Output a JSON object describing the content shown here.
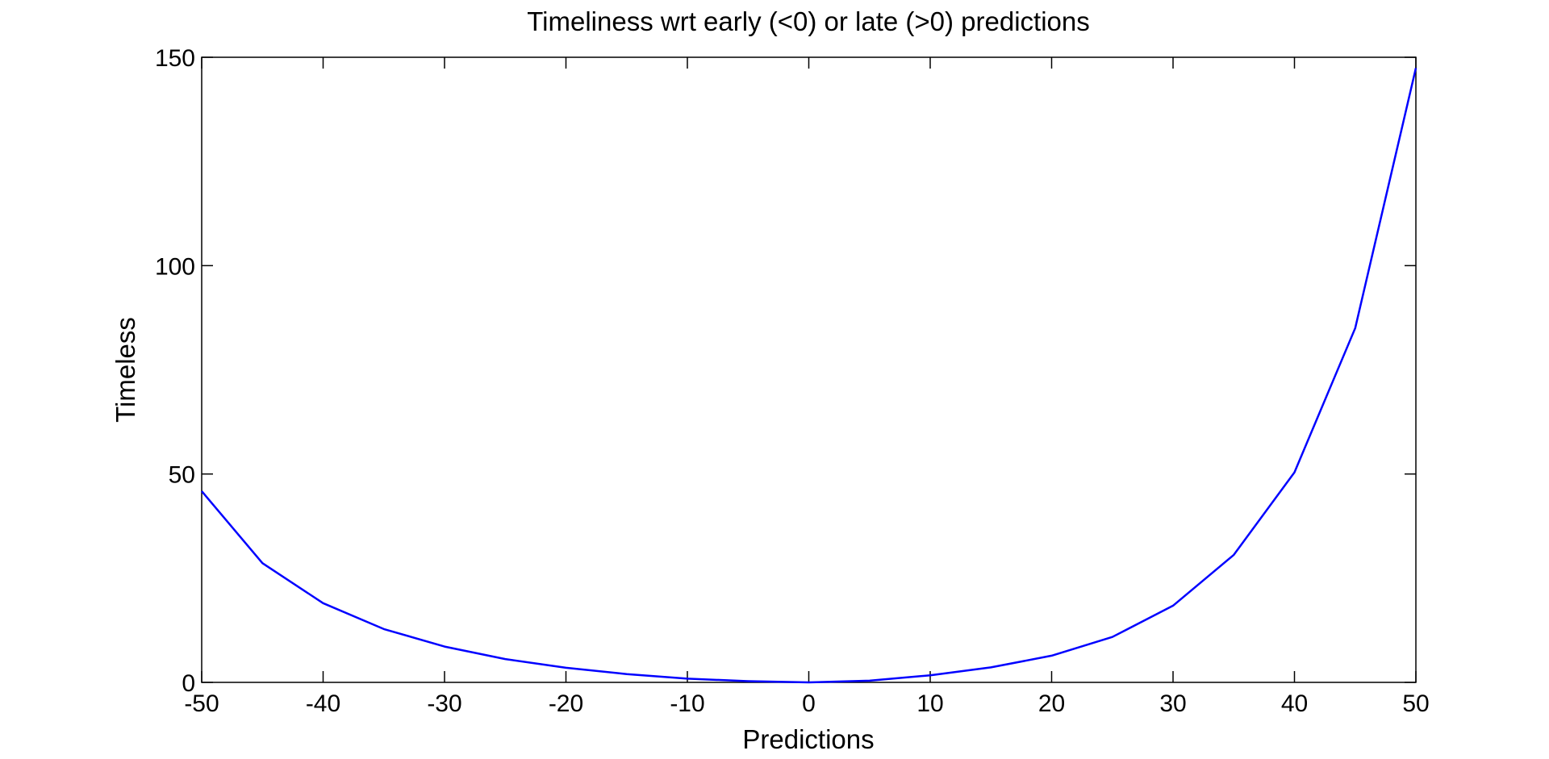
{
  "chart_data": {
    "type": "line",
    "title": "Timeliness wrt early (<0) or late (>0) predictions",
    "xlabel": "Predictions",
    "ylabel": "Timeless",
    "xlim": [
      -50,
      50
    ],
    "ylim": [
      0,
      150
    ],
    "x_ticks": [
      "-50",
      "-40",
      "-30",
      "-20",
      "-10",
      "0",
      "10",
      "20",
      "30",
      "40",
      "50"
    ],
    "y_ticks": [
      "0",
      "50",
      "100",
      "150"
    ],
    "grid": false,
    "legend": "none",
    "series": [
      {
        "color": "#0000ff",
        "x": [
          -50,
          -45,
          -40,
          -35,
          -30,
          -25,
          -20,
          -15,
          -10,
          -5,
          0,
          5,
          10,
          15,
          20,
          25,
          30,
          35,
          40,
          45,
          50
        ],
        "y": [
          45.9,
          28.6,
          19.0,
          12.8,
          8.6,
          5.6,
          3.5,
          2.0,
          0.9,
          0.3,
          0,
          0.4,
          1.7,
          3.6,
          6.4,
          10.9,
          18.4,
          30.6,
          50.4,
          85.0,
          147.4
        ]
      }
    ]
  }
}
